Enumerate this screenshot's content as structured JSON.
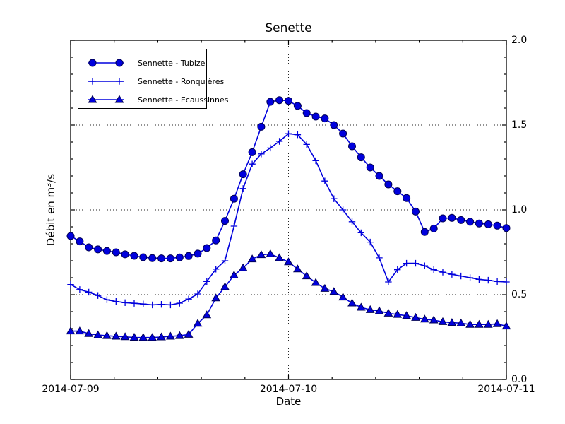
{
  "chart_data": {
    "type": "line",
    "title": "Senette",
    "xlabel": "Date",
    "ylabel": "Débit en m³/s",
    "x_tick_labels": [
      "2014-07-09",
      "2014-07-10",
      "2014-07-11"
    ],
    "y_tick_labels": [
      "0.0",
      "0.5",
      "1.0",
      "1.5",
      "2.0"
    ],
    "y_ticks": [
      0,
      0.5,
      1,
      1.5,
      2
    ],
    "ylim": [
      0,
      2
    ],
    "x_start": "2014-07-09 00:00",
    "x_step": "1 hour",
    "x_hours_total": 48,
    "x_major_hours": [
      0,
      24,
      48
    ],
    "x_minor_interval_hours": 4.8,
    "y_minor_interval": 0.1,
    "grid_y": [
      0.5,
      1,
      1.5
    ],
    "grid_x_hours": [
      24
    ],
    "grid_style": "dotted",
    "legend_position": "upper left",
    "line_color": "#0000dd",
    "marker_edge_color": "#000055",
    "series": [
      {
        "name": "Sennette - Tubize",
        "marker": "circle",
        "color": "#0000dd",
        "values": [
          0.846,
          0.814,
          0.779,
          0.767,
          0.758,
          0.75,
          0.738,
          0.729,
          0.721,
          0.716,
          0.714,
          0.714,
          0.72,
          0.728,
          0.742,
          0.775,
          0.82,
          0.935,
          1.066,
          1.21,
          1.34,
          1.49,
          1.637,
          1.647,
          1.643,
          1.613,
          1.571,
          1.55,
          1.539,
          1.5,
          1.45,
          1.375,
          1.31,
          1.25,
          1.2,
          1.15,
          1.11,
          1.07,
          0.99,
          0.87,
          0.89,
          0.95,
          0.953,
          0.94,
          0.93,
          0.92,
          0.915,
          0.907,
          0.893
        ]
      },
      {
        "name": "Sennette - Ronquières",
        "marker": "plus",
        "color": "#0000dd",
        "values": [
          0.56,
          0.53,
          0.515,
          0.495,
          0.47,
          0.46,
          0.453,
          0.449,
          0.445,
          0.44,
          0.443,
          0.44,
          0.45,
          0.474,
          0.504,
          0.578,
          0.651,
          0.7,
          0.904,
          1.126,
          1.27,
          1.33,
          1.365,
          1.404,
          1.449,
          1.443,
          1.386,
          1.29,
          1.17,
          1.066,
          1.0,
          0.93,
          0.865,
          0.81,
          0.717,
          0.575,
          0.647,
          0.685,
          0.685,
          0.67,
          0.647,
          0.633,
          0.62,
          0.61,
          0.6,
          0.59,
          0.585,
          0.578,
          0.575
        ]
      },
      {
        "name": "Sennette - Ecaussinnes",
        "marker": "triangle-up",
        "color": "#0000dd",
        "values": [
          0.285,
          0.285,
          0.27,
          0.262,
          0.258,
          0.254,
          0.251,
          0.248,
          0.247,
          0.247,
          0.25,
          0.254,
          0.258,
          0.265,
          0.33,
          0.38,
          0.48,
          0.546,
          0.615,
          0.657,
          0.71,
          0.735,
          0.74,
          0.717,
          0.693,
          0.651,
          0.61,
          0.571,
          0.536,
          0.518,
          0.485,
          0.45,
          0.425,
          0.411,
          0.404,
          0.39,
          0.383,
          0.376,
          0.365,
          0.355,
          0.35,
          0.34,
          0.335,
          0.332,
          0.324,
          0.324,
          0.324,
          0.328,
          0.314
        ]
      }
    ]
  }
}
